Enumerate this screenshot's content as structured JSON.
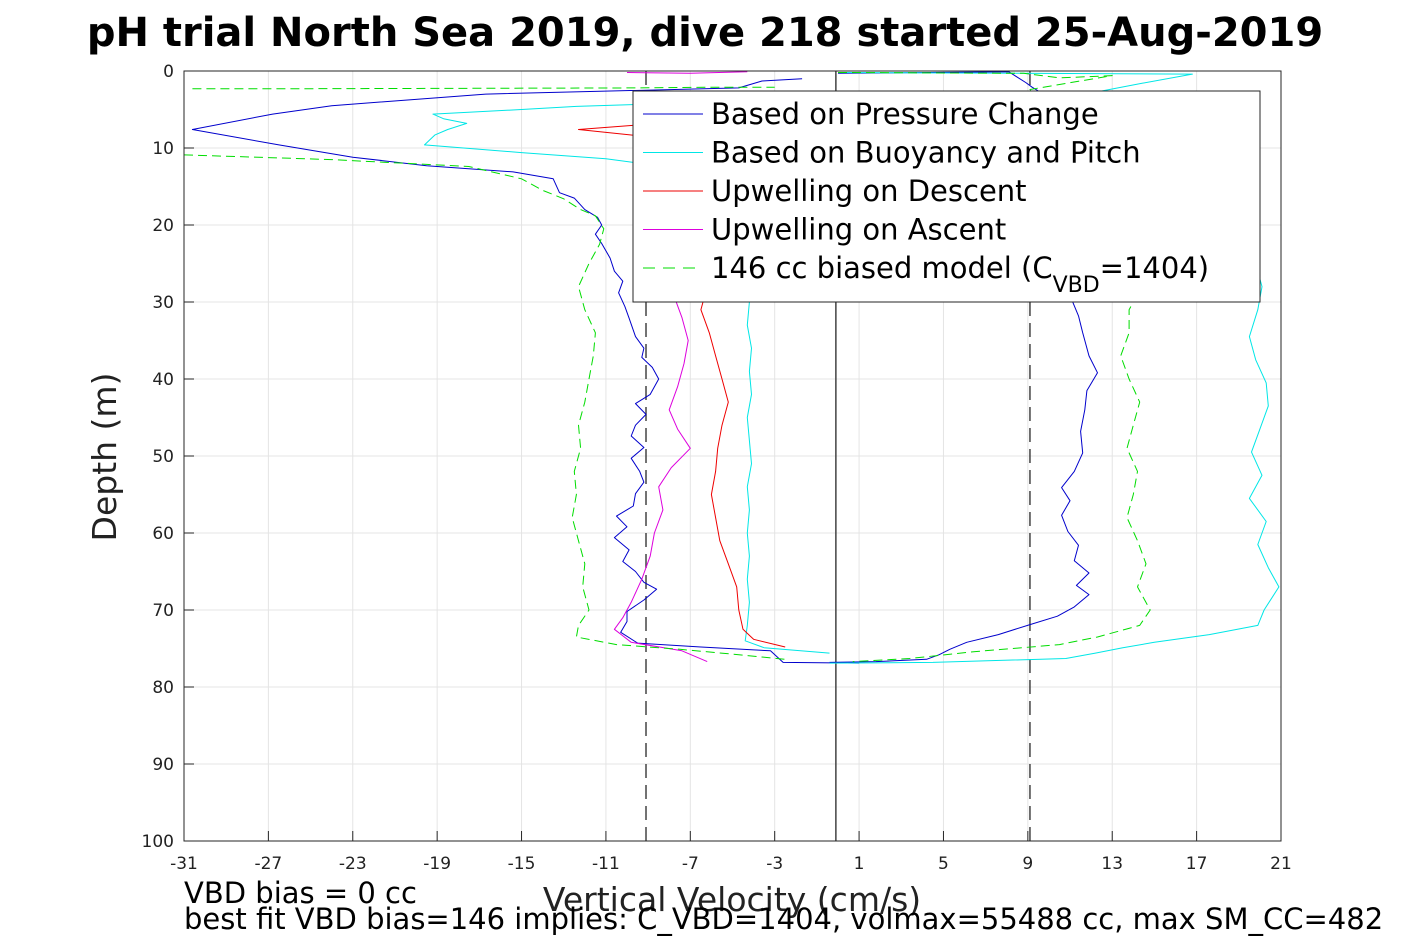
{
  "chart_data": {
    "type": "line",
    "title": "pH trial North Sea 2019, dive 218 started 25-Aug-2019",
    "xlabel": "Vertical Velocity (cm/s)",
    "ylabel": "Depth (m)",
    "xlim": [
      -31,
      21
    ],
    "ylim": [
      0,
      100
    ],
    "y_reversed": true,
    "grid": true,
    "x_ticks": [
      -31,
      -27,
      -23,
      -19,
      -15,
      -11,
      -7,
      -3,
      1,
      5,
      9,
      13,
      17,
      21
    ],
    "y_ticks": [
      0,
      10,
      20,
      30,
      40,
      50,
      60,
      70,
      80,
      90,
      100
    ],
    "legend_position": "top-right",
    "legend": [
      {
        "label": "Based on Pressure Change",
        "color": "#0000cc",
        "style": "solid"
      },
      {
        "label": "Based on Buoyancy and Pitch",
        "color": "#00e6e6",
        "style": "solid"
      },
      {
        "label": "Upwelling on Descent",
        "color": "#ee0000",
        "style": "solid"
      },
      {
        "label": "Upwelling on Ascent",
        "color": "#dd00dd",
        "style": "solid"
      },
      {
        "label_main": "146 cc biased model (C",
        "label_sub": "VBD",
        "label_end": "=1404)",
        "color": "#00dd00",
        "style": "dashed"
      }
    ],
    "reference_lines": [
      {
        "x": -9.1,
        "style": "dashed",
        "color": "#444444"
      },
      {
        "x": -0.1,
        "style": "solid",
        "color": "#444444"
      },
      {
        "x": 9.1,
        "style": "dashed",
        "color": "#444444"
      }
    ],
    "series": [
      {
        "name": "Based on Pressure Change",
        "color": "#0000cc",
        "points": [
          [
            -1.7,
            1
          ],
          [
            -3.6,
            1.3
          ],
          [
            -4.7,
            2.2
          ],
          [
            -16.7,
            3
          ],
          [
            -24,
            4.5
          ],
          [
            -26.8,
            5.6
          ],
          [
            -30.6,
            7.6
          ],
          [
            -26.5,
            9.6
          ],
          [
            -23,
            11.2
          ],
          [
            -19.5,
            12.3
          ],
          [
            -15.4,
            13.1
          ],
          [
            -13.5,
            14
          ],
          [
            -13.2,
            15.8
          ],
          [
            -12.5,
            16.5
          ],
          [
            -12,
            18
          ],
          [
            -11.4,
            19
          ],
          [
            -11.2,
            20
          ],
          [
            -11.5,
            21.2
          ],
          [
            -11.2,
            22.4
          ],
          [
            -10.8,
            24.3
          ],
          [
            -10.6,
            26
          ],
          [
            -10.2,
            27.3
          ],
          [
            -10.4,
            28.8
          ],
          [
            -10.1,
            30.6
          ],
          [
            -9.9,
            32.1
          ],
          [
            -9.6,
            34.5
          ],
          [
            -9.2,
            36
          ],
          [
            -9.3,
            37.2
          ],
          [
            -8.8,
            38.5
          ],
          [
            -8.5,
            40
          ],
          [
            -8.9,
            42
          ],
          [
            -9.6,
            43.2
          ],
          [
            -9.1,
            44.6
          ],
          [
            -9.6,
            46
          ],
          [
            -9.8,
            47.4
          ],
          [
            -9.2,
            48.9
          ],
          [
            -9.8,
            50.3
          ],
          [
            -9.4,
            52
          ],
          [
            -9.2,
            53.4
          ],
          [
            -9.6,
            54.9
          ],
          [
            -9.7,
            56.5
          ],
          [
            -10.5,
            57.8
          ],
          [
            -10,
            59.2
          ],
          [
            -10.6,
            60.6
          ],
          [
            -9.9,
            62.2
          ],
          [
            -10.2,
            63.7
          ],
          [
            -9.6,
            65
          ],
          [
            -9.2,
            66.4
          ],
          [
            -8.6,
            67.3
          ],
          [
            -9.2,
            68.7
          ],
          [
            -10,
            70.2
          ],
          [
            -10,
            71.5
          ],
          [
            -10.3,
            72.9
          ],
          [
            -9.5,
            74.3
          ],
          [
            -6.5,
            74.8
          ],
          [
            -3.2,
            75.3
          ],
          [
            -2.6,
            76.8
          ],
          [
            1,
            76.9
          ]
        ]
      },
      {
        "name": "Based on Pressure Change",
        "color": "#0000cc",
        "points": [
          [
            0,
            0.3
          ],
          [
            8.1,
            0.1
          ],
          [
            8.5,
            0.8
          ],
          [
            8.9,
            1.5
          ],
          [
            9.2,
            2.1
          ],
          [
            9.5,
            2.6
          ],
          [
            10.4,
            25
          ],
          [
            10.9,
            28.5
          ],
          [
            11.4,
            31.8
          ],
          [
            11.6,
            34
          ],
          [
            11.9,
            37
          ],
          [
            12.3,
            39.2
          ],
          [
            11.8,
            41.5
          ],
          [
            11.7,
            44
          ],
          [
            11.5,
            46.8
          ],
          [
            11.6,
            49.6
          ],
          [
            11.2,
            52
          ],
          [
            10.6,
            54.1
          ],
          [
            11,
            55.8
          ],
          [
            10.6,
            57.7
          ],
          [
            10.9,
            59.8
          ],
          [
            11.4,
            61.6
          ],
          [
            11.2,
            63.6
          ],
          [
            11.9,
            65.2
          ],
          [
            11.3,
            66.8
          ],
          [
            11.9,
            68
          ],
          [
            11.2,
            69.6
          ],
          [
            10.4,
            70.8
          ],
          [
            9.1,
            71.9
          ],
          [
            7.6,
            73.2
          ],
          [
            6.1,
            74.2
          ],
          [
            5.3,
            75.1
          ],
          [
            4.8,
            75.8
          ],
          [
            4.2,
            76.4
          ],
          [
            1.8,
            76.7
          ],
          [
            -0.4,
            76.8
          ]
        ]
      },
      {
        "name": "Based on Buoyancy and Pitch",
        "color": "#00e6e6",
        "points": [
          [
            -7.8,
            4.2
          ],
          [
            -12.4,
            4.6
          ],
          [
            -15,
            5
          ],
          [
            -19.2,
            5.6
          ],
          [
            -18.7,
            6.2
          ],
          [
            -17.6,
            6.8
          ],
          [
            -18.5,
            7.6
          ],
          [
            -19.1,
            8.3
          ],
          [
            -19.6,
            9.6
          ],
          [
            -15,
            10.6
          ],
          [
            -11,
            11.4
          ],
          [
            -7.9,
            12.5
          ]
        ]
      },
      {
        "name": "Based on Buoyancy and Pitch",
        "color": "#00e6e6",
        "points": [
          [
            -4.3,
            27
          ],
          [
            -4.2,
            30
          ],
          [
            -4.3,
            33
          ],
          [
            -4.1,
            36
          ],
          [
            -4.2,
            39
          ],
          [
            -4.1,
            42
          ],
          [
            -4.3,
            45
          ],
          [
            -4.2,
            48
          ],
          [
            -4.1,
            51
          ],
          [
            -4.3,
            54
          ],
          [
            -4.2,
            57
          ],
          [
            -4.3,
            60
          ],
          [
            -4.2,
            63
          ],
          [
            -4.3,
            66
          ],
          [
            -4.2,
            69
          ],
          [
            -4.3,
            72
          ],
          [
            -4.4,
            74
          ],
          [
            -3.5,
            74.9
          ],
          [
            -0.4,
            75.6
          ]
        ]
      },
      {
        "name": "Based on Buoyancy and Pitch",
        "color": "#00e6e6",
        "points": [
          [
            0,
            0.2
          ],
          [
            16.8,
            0.4
          ],
          [
            14.2,
            1.7
          ],
          [
            12.5,
            2.6
          ],
          [
            19.8,
            25
          ],
          [
            20.1,
            28
          ],
          [
            19.9,
            31
          ],
          [
            19.5,
            34.5
          ],
          [
            19.8,
            37.5
          ],
          [
            20.3,
            40.5
          ],
          [
            20.4,
            43.5
          ],
          [
            20,
            46.5
          ],
          [
            19.6,
            49.5
          ],
          [
            20.1,
            52.5
          ],
          [
            19.5,
            55.5
          ],
          [
            20.3,
            58.5
          ],
          [
            19.9,
            61.5
          ],
          [
            20.4,
            64.5
          ],
          [
            20.9,
            67
          ],
          [
            20.2,
            70
          ],
          [
            19.9,
            72
          ],
          [
            17.6,
            73.2
          ],
          [
            15,
            74.2
          ],
          [
            13.5,
            74.9
          ],
          [
            12.2,
            75.6
          ],
          [
            10.8,
            76.3
          ],
          [
            4.5,
            76.8
          ],
          [
            -0.4,
            76.9
          ]
        ]
      },
      {
        "name": "Upwelling on Descent",
        "color": "#ee0000",
        "points": [
          [
            -8,
            6.7
          ],
          [
            -12.3,
            7.6
          ],
          [
            -9.5,
            8.4
          ],
          [
            -7.9,
            9.4
          ]
        ]
      },
      {
        "name": "Upwelling on Descent",
        "color": "#ee0000",
        "points": [
          [
            -6.2,
            28
          ],
          [
            -6.5,
            31
          ],
          [
            -6.1,
            34
          ],
          [
            -5.8,
            37
          ],
          [
            -5.5,
            40
          ],
          [
            -5.2,
            43
          ],
          [
            -5.5,
            46
          ],
          [
            -5.7,
            49
          ],
          [
            -5.8,
            52
          ],
          [
            -6,
            55
          ],
          [
            -5.8,
            58
          ],
          [
            -5.6,
            61
          ],
          [
            -5.2,
            64
          ],
          [
            -4.8,
            67
          ],
          [
            -4.7,
            70
          ],
          [
            -4.5,
            72.5
          ],
          [
            -4,
            73.8
          ],
          [
            -2.5,
            74.8
          ]
        ]
      },
      {
        "name": "Upwelling on Ascent",
        "color": "#dd00dd",
        "points": [
          [
            -10,
            0.2
          ],
          [
            -7,
            0.3
          ],
          [
            -4.3,
            0.1
          ]
        ]
      },
      {
        "name": "Upwelling on Ascent",
        "color": "#dd00dd",
        "points": [
          [
            -8.1,
            26.5
          ],
          [
            -7.8,
            29
          ],
          [
            -7.4,
            32
          ],
          [
            -7.1,
            35
          ],
          [
            -7.3,
            38
          ],
          [
            -7.6,
            41
          ],
          [
            -8,
            44
          ],
          [
            -7.6,
            46.5
          ],
          [
            -7,
            49
          ],
          [
            -7.9,
            51.5
          ],
          [
            -8.5,
            54
          ],
          [
            -8.3,
            57
          ],
          [
            -8.7,
            60
          ],
          [
            -8.9,
            63
          ],
          [
            -9.3,
            66
          ],
          [
            -9.8,
            69
          ],
          [
            -10.2,
            71
          ],
          [
            -10.6,
            72.5
          ],
          [
            -9.8,
            74.2
          ],
          [
            -7.4,
            75.3
          ],
          [
            -6.2,
            76.7
          ]
        ]
      },
      {
        "name": "146 cc biased model (CVBD=1404)",
        "color": "#00dd00",
        "dashed": true,
        "points": [
          [
            -30.6,
            2.3
          ],
          [
            -25,
            2.3
          ],
          [
            -9.4,
            2.2
          ],
          [
            -6,
            2.1
          ],
          [
            -3,
            2.1
          ]
        ]
      },
      {
        "name": "146 cc biased model (CVBD=1404)",
        "color": "#00dd00",
        "dashed": true,
        "points": [
          [
            -31,
            10.9
          ],
          [
            -24,
            11.5
          ],
          [
            -17.5,
            12.4
          ],
          [
            -15,
            14
          ],
          [
            -14,
            15.5
          ],
          [
            -13,
            16.6
          ],
          [
            -12.2,
            18
          ],
          [
            -11.5,
            18.8
          ],
          [
            -11.1,
            20.5
          ],
          [
            -11.3,
            22.5
          ],
          [
            -11.8,
            25
          ],
          [
            -12.3,
            28
          ],
          [
            -12,
            31
          ],
          [
            -11.5,
            34
          ],
          [
            -11.6,
            37
          ],
          [
            -11.8,
            40
          ],
          [
            -12,
            43
          ],
          [
            -12.3,
            46
          ],
          [
            -12.2,
            49
          ],
          [
            -12.5,
            52
          ],
          [
            -12.4,
            55
          ],
          [
            -12.6,
            58
          ],
          [
            -12.3,
            61
          ],
          [
            -12,
            64
          ],
          [
            -12.1,
            67
          ],
          [
            -11.8,
            70
          ],
          [
            -12.3,
            72
          ],
          [
            -12.4,
            73.5
          ],
          [
            -10.5,
            74.5
          ],
          [
            -7.5,
            75.1
          ],
          [
            -4.7,
            75.8
          ],
          [
            -2.5,
            76.4
          ]
        ]
      },
      {
        "name": "146 cc biased model (CVBD=1404)",
        "color": "#00dd00",
        "dashed": true,
        "points": [
          [
            0,
            0.2
          ],
          [
            8.8,
            0.3
          ],
          [
            10.5,
            0.9
          ],
          [
            13,
            0.6
          ],
          [
            9.1,
            2.4
          ],
          [
            14.7,
            24
          ],
          [
            14.4,
            28
          ],
          [
            13.8,
            31
          ],
          [
            13.8,
            34
          ],
          [
            13.4,
            37
          ],
          [
            13.8,
            40
          ],
          [
            14.3,
            43
          ],
          [
            14,
            46
          ],
          [
            13.7,
            49
          ],
          [
            14.2,
            52
          ],
          [
            14,
            55
          ],
          [
            13.7,
            58
          ],
          [
            14.2,
            61
          ],
          [
            14.6,
            64
          ],
          [
            14.2,
            67
          ],
          [
            14.8,
            70
          ],
          [
            14.3,
            72
          ],
          [
            12.3,
            73.5
          ],
          [
            10.5,
            74.5
          ],
          [
            6.5,
            75.4
          ],
          [
            3.4,
            76.3
          ],
          [
            0.7,
            76.7
          ]
        ]
      }
    ],
    "annotations": [
      "VBD bias = 0 cc",
      "best fit VBD bias=146 implies: C_VBD=1404, volmax=55488 cc, max SM_CC=482"
    ]
  }
}
